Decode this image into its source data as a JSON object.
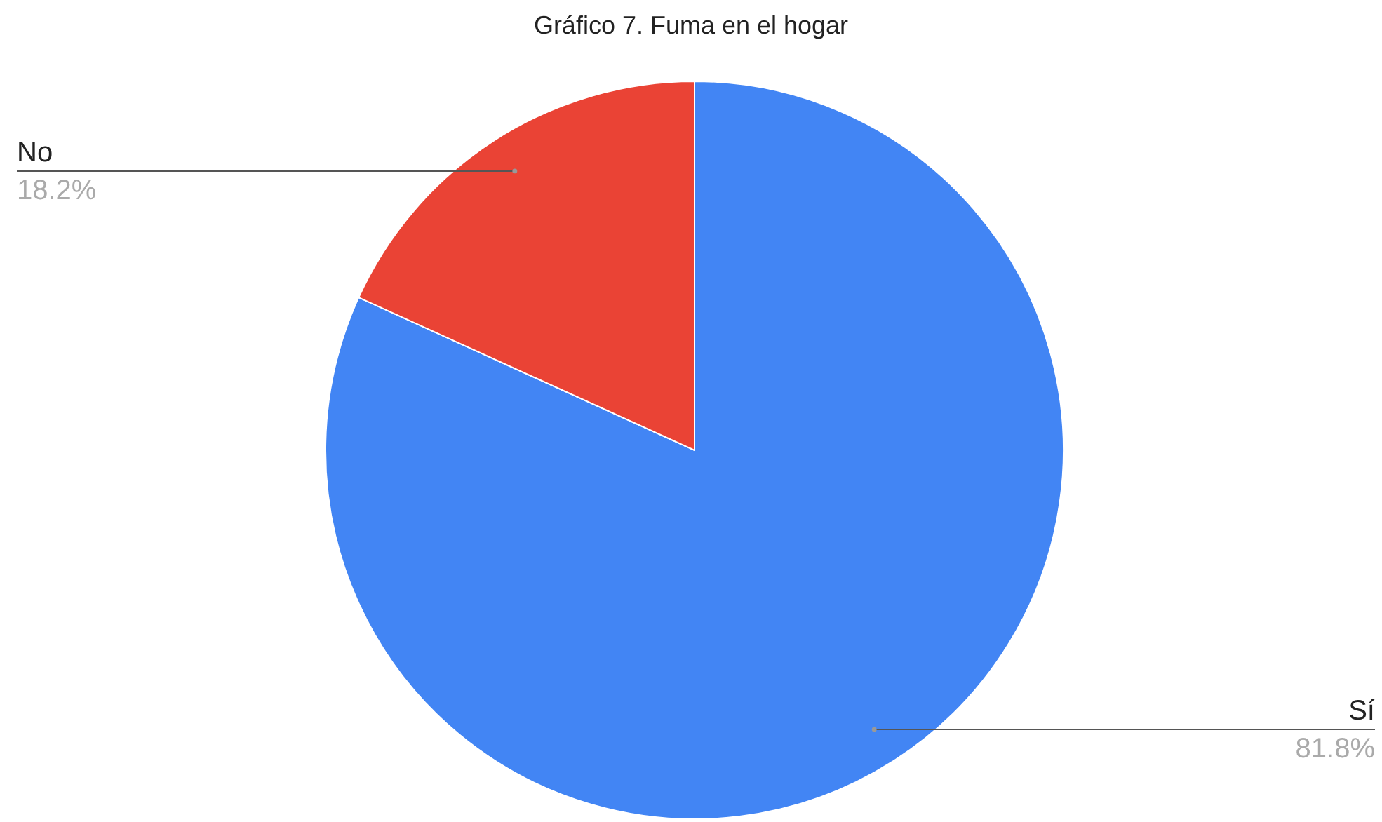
{
  "chart_data": {
    "type": "pie",
    "title": "Gráfico 7. Fuma en el hogar",
    "categories": [
      "Sí",
      "No"
    ],
    "values": [
      81.8,
      18.2
    ],
    "colors": [
      "#4285f4",
      "#ea4335"
    ],
    "value_labels": [
      "81.8%",
      "18.2%"
    ]
  }
}
